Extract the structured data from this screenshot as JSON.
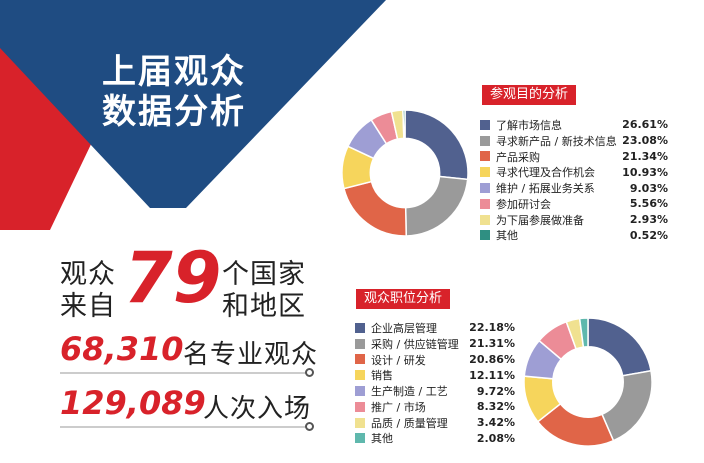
{
  "header": {
    "title_line1": "上届观众",
    "title_line2": "数据分析"
  },
  "countries": {
    "prefix_top": "观众",
    "prefix_bottom": "来自",
    "number": "79",
    "suffix_top": "个国家",
    "suffix_bottom": "和地区"
  },
  "visitors": {
    "number": "68,310",
    "label": "名专业观众"
  },
  "visits": {
    "number": "129,089",
    "label": "人次入场"
  },
  "chart_data": [
    {
      "type": "pie",
      "title": "参观目的分析",
      "categories": [
        "了解市场信息",
        "寻求新产品 / 新技术信息",
        "产品采购",
        "寻求代理及合作机会",
        "维护 / 拓展业务关系",
        "参加研讨会",
        "为下届参展做准备",
        "其他"
      ],
      "values": [
        26.61,
        23.08,
        21.34,
        10.93,
        9.03,
        5.56,
        2.93,
        0.52
      ],
      "labels": [
        "26.61%",
        "23.08%",
        "21.34%",
        "10.93%",
        "9.03%",
        "5.56%",
        "2.93%",
        "0.52%"
      ],
      "colors": [
        "#51618f",
        "#9a9a9a",
        "#e06548",
        "#f6d55c",
        "#9e9ed4",
        "#ec8c97",
        "#f0e190",
        "#2f8f82"
      ],
      "legend_position": "right"
    },
    {
      "type": "pie",
      "title": "观众职位分析",
      "categories": [
        "企业高层管理",
        "采购 / 供应链管理",
        "设计 / 研发",
        "销售",
        "生产制造 / 工艺",
        "推广 / 市场",
        "品质 / 质量管理",
        "其他"
      ],
      "values": [
        22.18,
        21.31,
        20.86,
        12.11,
        9.72,
        8.32,
        3.42,
        2.08
      ],
      "labels": [
        "22.18%",
        "21.31%",
        "20.86%",
        "12.11%",
        "9.72%",
        "8.32%",
        "3.42%",
        "2.08%"
      ],
      "colors": [
        "#51618f",
        "#9a9a9a",
        "#e06548",
        "#f6d55c",
        "#9e9ed4",
        "#ec8c97",
        "#f0e190",
        "#5fb8ad"
      ],
      "legend_position": "left"
    }
  ]
}
